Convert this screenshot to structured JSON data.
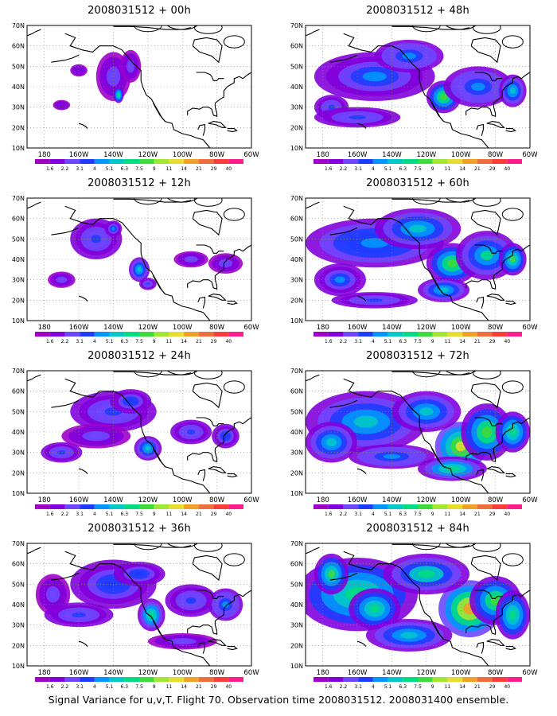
{
  "figure": {
    "caption": "Signal Variance for u,v,T. Flight 70. Observation time 2008031512. 2008031400 ensemble.",
    "colorbar": {
      "labels": [
        "1.6",
        "2.2",
        "3.1",
        "4",
        "5.1",
        "6.3",
        "7.5",
        "9",
        "11",
        "14",
        "21",
        "29",
        "40"
      ],
      "colors": [
        "#a000c8",
        "#8200dc",
        "#6e46ff",
        "#1e3cff",
        "#0096ff",
        "#00c8c8",
        "#00dc82",
        "#3cdc3c",
        "#a0e632",
        "#e6dc32",
        "#f0a028",
        "#f06e3c",
        "#fa3c3c",
        "#ff1e8c"
      ]
    },
    "axis": {
      "lat_labels": [
        "70N",
        "60N",
        "50N",
        "40N",
        "30N",
        "20N",
        "10N"
      ],
      "lon_labels": [
        "180",
        "160W",
        "140W",
        "120W",
        "100W",
        "80W",
        "60W"
      ]
    },
    "panels": [
      {
        "title": "2008031512 + 00h",
        "intensity": 0.6,
        "blobs": [
          [
            -140,
            45,
            10,
            12,
            0.35
          ],
          [
            -137,
            36,
            3,
            4,
            0.95
          ],
          [
            -130,
            50,
            6,
            8,
            0.3
          ],
          [
            -170,
            31,
            5,
            2.5,
            0.2
          ],
          [
            -160,
            48,
            5,
            3,
            0.2
          ]
        ]
      },
      {
        "title": "2008031512 + 12h",
        "intensity": 0.65,
        "blobs": [
          [
            -150,
            50,
            15,
            10,
            0.35
          ],
          [
            -125,
            35,
            6,
            6,
            0.7
          ],
          [
            -140,
            55,
            5,
            4,
            0.5
          ],
          [
            -170,
            30,
            8,
            4,
            0.3
          ],
          [
            -95,
            40,
            10,
            4,
            0.3
          ],
          [
            -75,
            38,
            10,
            5,
            0.3
          ],
          [
            -120,
            28,
            5,
            3,
            0.4
          ]
        ]
      },
      {
        "title": "2008031512 + 24h",
        "intensity": 0.7,
        "blobs": [
          [
            -140,
            50,
            25,
            10,
            0.4
          ],
          [
            -120,
            32,
            8,
            6,
            0.7
          ],
          [
            -170,
            30,
            12,
            5,
            0.35
          ],
          [
            -150,
            38,
            20,
            6,
            0.3
          ],
          [
            -95,
            40,
            12,
            6,
            0.35
          ],
          [
            -75,
            38,
            8,
            6,
            0.45
          ],
          [
            -130,
            55,
            12,
            6,
            0.45
          ]
        ]
      },
      {
        "title": "2008031512 + 36h",
        "intensity": 0.75,
        "blobs": [
          [
            -140,
            50,
            25,
            12,
            0.4
          ],
          [
            -118,
            35,
            8,
            8,
            0.75
          ],
          [
            -175,
            45,
            10,
            10,
            0.3
          ],
          [
            -160,
            35,
            20,
            6,
            0.35
          ],
          [
            -95,
            42,
            15,
            8,
            0.35
          ],
          [
            -75,
            40,
            10,
            8,
            0.5
          ],
          [
            -125,
            55,
            15,
            6,
            0.4
          ],
          [
            -100,
            22,
            20,
            4,
            0.25
          ]
        ]
      },
      {
        "title": "2008031512 + 48h",
        "intensity": 0.8,
        "blobs": [
          [
            -150,
            45,
            35,
            12,
            0.4
          ],
          [
            -110,
            35,
            10,
            8,
            0.8
          ],
          [
            -175,
            30,
            10,
            6,
            0.35
          ],
          [
            -90,
            40,
            20,
            10,
            0.45
          ],
          [
            -70,
            38,
            8,
            8,
            0.6
          ],
          [
            -130,
            55,
            20,
            8,
            0.45
          ],
          [
            -160,
            25,
            25,
            5,
            0.3
          ]
        ]
      },
      {
        "title": "2008031512 + 60h",
        "intensity": 0.85,
        "blobs": [
          [
            -150,
            48,
            40,
            12,
            0.45
          ],
          [
            -105,
            38,
            15,
            10,
            0.8
          ],
          [
            -170,
            30,
            15,
            8,
            0.4
          ],
          [
            -85,
            42,
            18,
            12,
            0.6
          ],
          [
            -70,
            40,
            8,
            8,
            0.7
          ],
          [
            -125,
            55,
            25,
            10,
            0.5
          ],
          [
            -110,
            25,
            15,
            6,
            0.55
          ],
          [
            -150,
            20,
            25,
            4,
            0.3
          ]
        ]
      },
      {
        "title": "2008031512 + 72h",
        "intensity": 0.9,
        "blobs": [
          [
            -155,
            45,
            35,
            15,
            0.5
          ],
          [
            -100,
            33,
            15,
            12,
            0.9
          ],
          [
            -175,
            35,
            15,
            10,
            0.55
          ],
          [
            -85,
            40,
            15,
            14,
            0.7
          ],
          [
            -120,
            50,
            20,
            10,
            0.5
          ],
          [
            -140,
            28,
            25,
            6,
            0.4
          ],
          [
            -70,
            40,
            10,
            10,
            0.65
          ],
          [
            -105,
            22,
            20,
            6,
            0.6
          ]
        ]
      },
      {
        "title": "2008031512 + 84h",
        "intensity": 0.95,
        "blobs": [
          [
            -160,
            45,
            35,
            18,
            0.6
          ],
          [
            -95,
            38,
            18,
            14,
            0.95
          ],
          [
            -175,
            55,
            10,
            10,
            0.65
          ],
          [
            -150,
            38,
            15,
            10,
            0.6
          ],
          [
            -80,
            42,
            15,
            12,
            0.7
          ],
          [
            -120,
            55,
            25,
            10,
            0.55
          ],
          [
            -130,
            25,
            25,
            8,
            0.45
          ],
          [
            -70,
            35,
            10,
            12,
            0.6
          ]
        ]
      }
    ]
  }
}
